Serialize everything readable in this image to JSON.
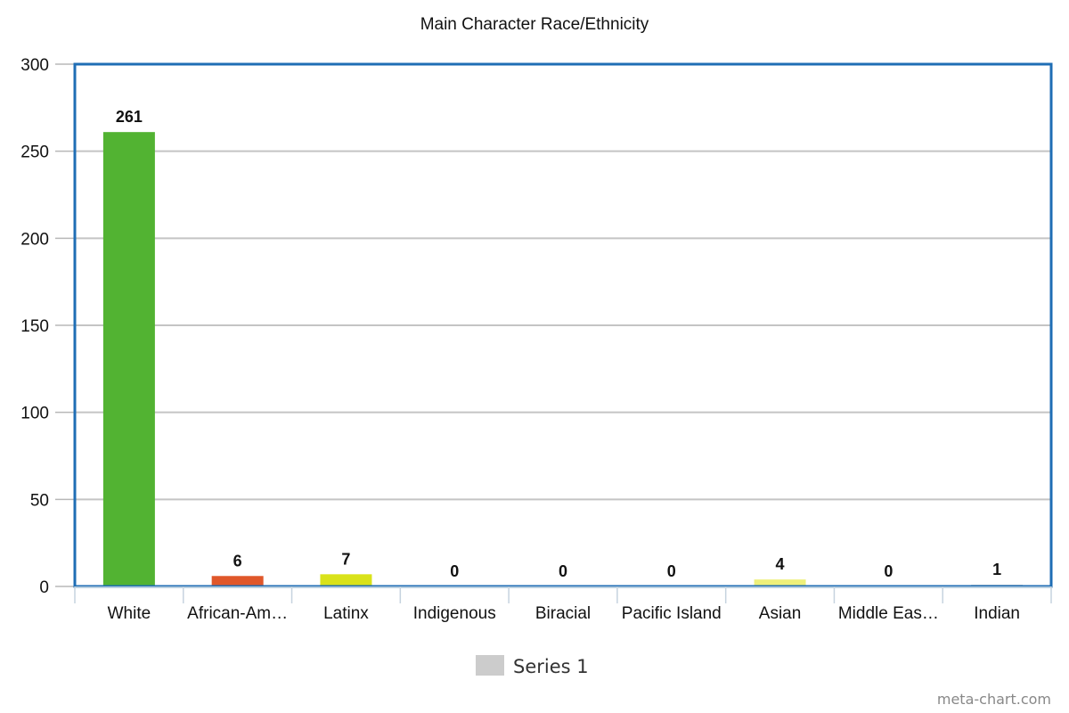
{
  "chart_data": {
    "type": "bar",
    "title": "Main Character Race/Ethnicity",
    "xlabel": "",
    "ylabel": "",
    "categories": [
      "White",
      "African-Am…",
      "Latinx",
      "Indigenous",
      "Biracial",
      "Pacific Island",
      "Asian",
      "Middle Eas…",
      "Indian"
    ],
    "series": [
      {
        "name": "Series 1",
        "values": [
          261,
          6,
          7,
          0,
          0,
          0,
          4,
          0,
          1
        ],
        "colors": [
          "#52b332",
          "#e0572a",
          "#d9e21a",
          "#cccccc",
          "#cccccc",
          "#cccccc",
          "#eef07a",
          "#cccccc",
          "#cccccc"
        ]
      }
    ],
    "ylim": [
      0,
      300
    ],
    "yticks": [
      "0",
      "50",
      "100",
      "150",
      "200",
      "250",
      "300"
    ],
    "grid": true,
    "legend": "bottom-center",
    "legend_color": "#cccccc",
    "frame_color": "#1f6eb5"
  },
  "watermark": "meta-chart.com"
}
